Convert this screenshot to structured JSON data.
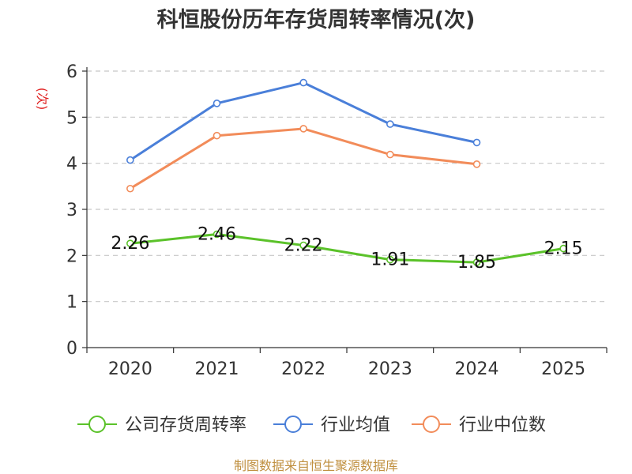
{
  "chart_data": {
    "type": "line",
    "title": "科恒股份历年存货周转率情况(次)",
    "ylabel": "(次)",
    "xlabel": "",
    "categories": [
      "2020",
      "2021",
      "2022",
      "2023",
      "2024",
      "2025"
    ],
    "ylim": [
      0,
      6
    ],
    "yticks": [
      "0",
      "1",
      "2",
      "3",
      "4",
      "5",
      "6"
    ],
    "grid": true,
    "legend_position": "bottom",
    "series": [
      {
        "name": "公司存货周转率",
        "color": "#5bc22a",
        "values": [
          2.26,
          2.46,
          2.22,
          1.91,
          1.85,
          2.15
        ],
        "labels": [
          "2.26",
          "2.46",
          "2.22",
          "1.91",
          "1.85",
          "2.15"
        ]
      },
      {
        "name": "行业均值",
        "color": "#4a7fd9",
        "values": [
          4.07,
          5.3,
          5.75,
          4.85,
          4.45,
          null
        ]
      },
      {
        "name": "行业中位数",
        "color": "#f28c5a",
        "values": [
          3.45,
          4.6,
          4.75,
          4.19,
          3.98,
          null
        ]
      }
    ]
  },
  "footer": {
    "source": "制图数据来自恒生聚源数据库"
  }
}
